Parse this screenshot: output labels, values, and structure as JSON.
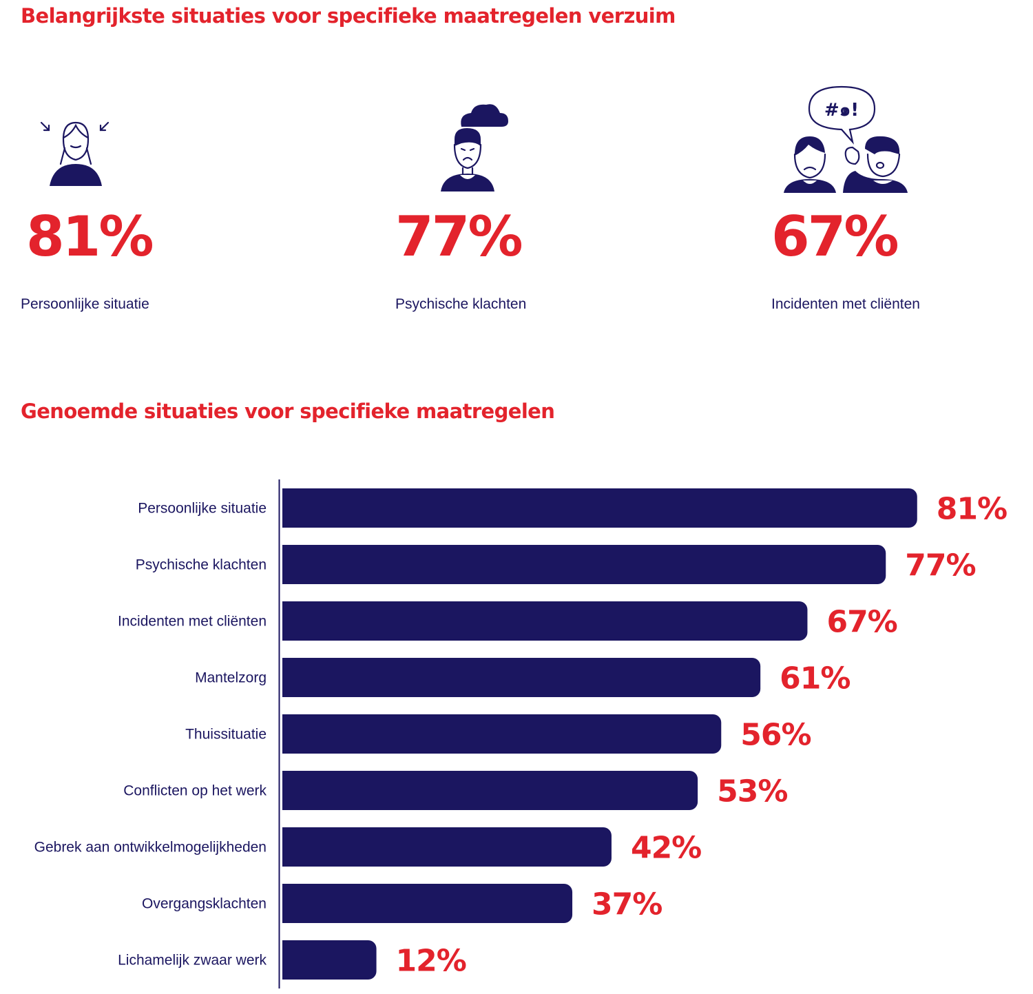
{
  "heading_top": "Belangrijkste situaties voor specifieke maatregelen verzuim",
  "heading_chart": "Genoemde situaties voor specifieke maatregelen",
  "highlights": [
    {
      "value": "81%",
      "label": "Persoonlijke situatie",
      "icon": "stressed-person-icon"
    },
    {
      "value": "77%",
      "label": "Psychische klachten",
      "icon": "sad-person-cloud-icon"
    },
    {
      "value": "67%",
      "label": "Incidenten met cliënten",
      "icon": "conflict-speech-icon"
    }
  ],
  "speech_bubble_text": "#๑!",
  "colors": {
    "accent": "#e3232c",
    "bar": "#1b1660",
    "text": "#1b1660"
  },
  "chart_data": {
    "type": "bar",
    "orientation": "horizontal",
    "categories": [
      "Persoonlijke situatie",
      "Psychische klachten",
      "Incidenten met cliënten",
      "Mantelzorg",
      "Thuissituatie",
      "Conflicten op het werk",
      "Gebrek aan ontwikkelmogelijkheden",
      "Overgangsklachten",
      "Lichamelijk zwaar werk"
    ],
    "values": [
      81,
      77,
      67,
      61,
      56,
      53,
      42,
      37,
      12
    ],
    "value_labels": [
      "81%",
      "77%",
      "67%",
      "61%",
      "56%",
      "53%",
      "42%",
      "37%",
      "12%"
    ],
    "unit": "%",
    "xlim": [
      0,
      100
    ],
    "grid": false,
    "legend": "none"
  }
}
